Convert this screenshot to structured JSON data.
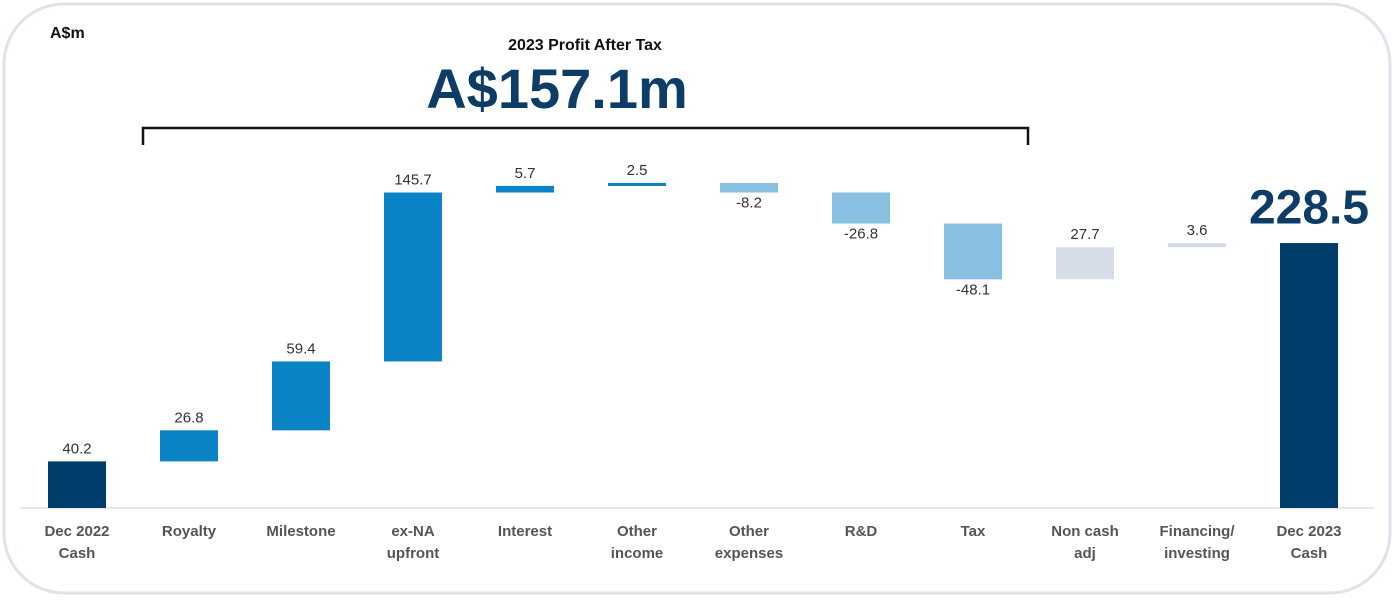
{
  "chart_data": {
    "type": "waterfall",
    "unit_label": "A$m",
    "subtitle": "2023 Profit After Tax",
    "annotation": "A$157.1m",
    "categories": [
      [
        "Dec 2022",
        "Cash"
      ],
      [
        "Royalty"
      ],
      [
        "Milestone"
      ],
      [
        "ex-NA",
        "upfront"
      ],
      [
        "Interest"
      ],
      [
        "Other",
        "income"
      ],
      [
        "Other",
        "expenses"
      ],
      [
        "R&D"
      ],
      [
        "Tax"
      ],
      [
        "Non cash",
        "adj"
      ],
      [
        "Financing/",
        "investing"
      ],
      [
        "Dec 2023",
        "Cash"
      ]
    ],
    "values": [
      40.2,
      26.8,
      59.4,
      145.7,
      5.7,
      2.5,
      -8.2,
      -26.8,
      -48.1,
      27.7,
      3.6,
      228.5
    ],
    "colors": [
      "#003d6b",
      "#0a84c6",
      "#0a84c6",
      "#0a84c6",
      "#0a84c6",
      "#0a84c6",
      "#89bfe0",
      "#89bfe0",
      "#89bfe0",
      "#d6dde9",
      "#d6dde9",
      "#003d6b"
    ]
  }
}
